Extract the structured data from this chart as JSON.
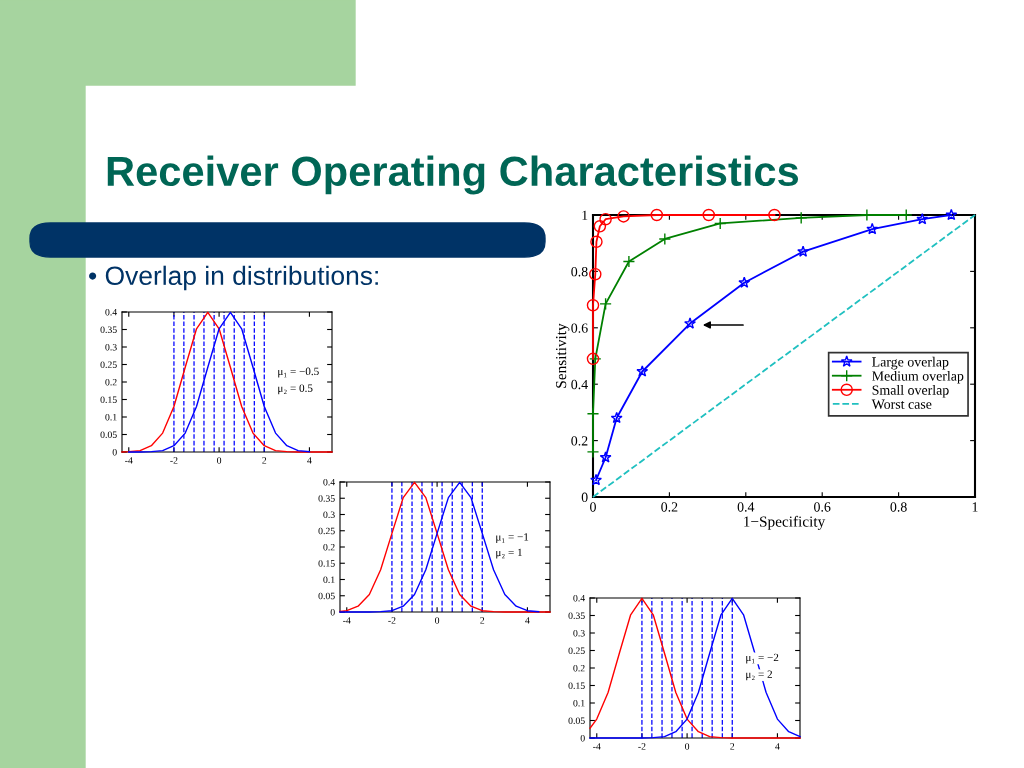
{
  "chart_data": [
    {
      "type": "other",
      "title": "Receiver Operating Characteristics",
      "annotations": [
        "• Overlap in distributions:"
      ]
    },
    {
      "type": "line",
      "x": [
        -4.3,
        -4,
        -3.5,
        -3,
        -2.5,
        -2,
        -1.5,
        -1,
        -0.5,
        0,
        0.5,
        1,
        1.5,
        2,
        2.5,
        3,
        3.5,
        4,
        4.5,
        5
      ],
      "series": [
        {
          "color": "#ff0000",
          "values": [
            0,
            0.001,
            0.004,
            0.018,
            0.054,
            0.13,
            0.242,
            0.352,
            0.399,
            0.352,
            0.242,
            0.13,
            0.054,
            0.018,
            0.004,
            0.001,
            0,
            0,
            0,
            0
          ]
        },
        {
          "color": "#0000ff",
          "values": [
            null,
            0,
            0,
            0.001,
            0.004,
            0.018,
            0.054,
            0.13,
            0.242,
            0.352,
            0.399,
            0.352,
            0.242,
            0.13,
            0.054,
            0.018,
            0.004,
            0.001,
            null,
            null
          ]
        }
      ],
      "ref_lines": [
        {
          "axis": "x",
          "value": -2,
          "color": "#0000ff",
          "line_style": "dashed"
        },
        {
          "axis": "x",
          "value": -1.56,
          "color": "#0000ff",
          "line_style": "dashed"
        },
        {
          "axis": "x",
          "value": -1.11,
          "color": "#0000ff",
          "line_style": "dashed"
        },
        {
          "axis": "x",
          "value": -0.67,
          "color": "#0000ff",
          "line_style": "dashed"
        },
        {
          "axis": "x",
          "value": -0.22,
          "color": "#0000ff",
          "line_style": "dashed"
        },
        {
          "axis": "x",
          "value": 0.22,
          "color": "#0000ff",
          "line_style": "dashed"
        },
        {
          "axis": "x",
          "value": 0.67,
          "color": "#0000ff",
          "line_style": "dashed"
        },
        {
          "axis": "x",
          "value": 1.11,
          "color": "#0000ff",
          "line_style": "dashed"
        },
        {
          "axis": "x",
          "value": 1.56,
          "color": "#0000ff",
          "line_style": "dashed"
        },
        {
          "axis": "x",
          "value": 2,
          "color": "#0000ff",
          "line_style": "dashed"
        }
      ],
      "annotations": [
        "μ₁ = −0.5",
        "μ₂ = 0.5"
      ],
      "xlim": [
        -4.3,
        5
      ],
      "ylim": [
        0,
        0.4
      ],
      "xticks": [
        -4,
        -2,
        0,
        2,
        4
      ],
      "yticks": [
        0,
        0.05,
        0.1,
        0.15,
        0.2,
        0.25,
        0.3,
        0.35,
        0.4
      ]
    },
    {
      "type": "line",
      "x": [
        -4.3,
        -4,
        -3.5,
        -3,
        -2.5,
        -2,
        -1.5,
        -1,
        -0.5,
        0,
        0.5,
        1,
        1.5,
        2,
        2.5,
        3,
        3.5,
        4,
        4.5,
        5
      ],
      "series": [
        {
          "color": "#ff0000",
          "values": [
            0.002,
            0.004,
            0.018,
            0.054,
            0.13,
            0.242,
            0.352,
            0.399,
            0.352,
            0.242,
            0.13,
            0.054,
            0.018,
            0.004,
            0.001,
            0,
            0,
            0,
            0,
            0
          ]
        },
        {
          "color": "#0000ff",
          "values": [
            0,
            0,
            0,
            0,
            0.001,
            0.004,
            0.018,
            0.054,
            0.13,
            0.242,
            0.352,
            0.399,
            0.352,
            0.242,
            0.13,
            0.054,
            0.018,
            0.004,
            0.001,
            null
          ]
        }
      ],
      "ref_lines": [
        {
          "axis": "x",
          "value": -2,
          "color": "#0000ff",
          "line_style": "dashed"
        },
        {
          "axis": "x",
          "value": -1.56,
          "color": "#0000ff",
          "line_style": "dashed"
        },
        {
          "axis": "x",
          "value": -1.11,
          "color": "#0000ff",
          "line_style": "dashed"
        },
        {
          "axis": "x",
          "value": -0.67,
          "color": "#0000ff",
          "line_style": "dashed"
        },
        {
          "axis": "x",
          "value": -0.22,
          "color": "#0000ff",
          "line_style": "dashed"
        },
        {
          "axis": "x",
          "value": 0.22,
          "color": "#0000ff",
          "line_style": "dashed"
        },
        {
          "axis": "x",
          "value": 0.67,
          "color": "#0000ff",
          "line_style": "dashed"
        },
        {
          "axis": "x",
          "value": 1.11,
          "color": "#0000ff",
          "line_style": "dashed"
        },
        {
          "axis": "x",
          "value": 1.56,
          "color": "#0000ff",
          "line_style": "dashed"
        },
        {
          "axis": "x",
          "value": 2,
          "color": "#0000ff",
          "line_style": "dashed"
        }
      ],
      "annotations": [
        "μ₁ = −1",
        "μ₂ = 1"
      ],
      "xlim": [
        -4.3,
        5
      ],
      "ylim": [
        0,
        0.4
      ],
      "xticks": [
        -4,
        -2,
        0,
        2,
        4
      ],
      "yticks": [
        0,
        0.05,
        0.1,
        0.15,
        0.2,
        0.25,
        0.3,
        0.35,
        0.4
      ]
    },
    {
      "type": "line",
      "x": [
        -4.3,
        -4,
        -3.5,
        -3,
        -2.5,
        -2,
        -1.5,
        -1,
        -0.5,
        0,
        0.5,
        1,
        1.5,
        2,
        2.5,
        3,
        3.5,
        4,
        4.5,
        5
      ],
      "series": [
        {
          "color": "#ff0000",
          "values": [
            0.028,
            0.054,
            0.13,
            0.242,
            0.352,
            0.399,
            0.352,
            0.242,
            0.13,
            0.054,
            0.018,
            0.004,
            0.001,
            0,
            0,
            0,
            0,
            0,
            0,
            0
          ]
        },
        {
          "color": "#0000ff",
          "values": [
            0,
            0,
            0,
            0,
            0,
            0,
            0.001,
            0.004,
            0.018,
            0.054,
            0.13,
            0.242,
            0.352,
            0.399,
            0.352,
            0.242,
            0.13,
            0.054,
            0.018,
            0.004
          ]
        }
      ],
      "ref_lines": [
        {
          "axis": "x",
          "value": -2,
          "color": "#0000ff",
          "line_style": "dashed"
        },
        {
          "axis": "x",
          "value": -1.56,
          "color": "#0000ff",
          "line_style": "dashed"
        },
        {
          "axis": "x",
          "value": -1.11,
          "color": "#0000ff",
          "line_style": "dashed"
        },
        {
          "axis": "x",
          "value": -0.67,
          "color": "#0000ff",
          "line_style": "dashed"
        },
        {
          "axis": "x",
          "value": -0.22,
          "color": "#0000ff",
          "line_style": "dashed"
        },
        {
          "axis": "x",
          "value": 0.22,
          "color": "#0000ff",
          "line_style": "dashed"
        },
        {
          "axis": "x",
          "value": 0.67,
          "color": "#0000ff",
          "line_style": "dashed"
        },
        {
          "axis": "x",
          "value": 1.11,
          "color": "#0000ff",
          "line_style": "dashed"
        },
        {
          "axis": "x",
          "value": 1.56,
          "color": "#0000ff",
          "line_style": "dashed"
        },
        {
          "axis": "x",
          "value": 2,
          "color": "#0000ff",
          "line_style": "dashed"
        }
      ],
      "annotations": [
        "μ₁ = −2",
        "μ₂ = 2"
      ],
      "xlim": [
        -4.3,
        5
      ],
      "ylim": [
        0,
        0.4
      ],
      "xticks": [
        -4,
        -2,
        0,
        2,
        4
      ],
      "yticks": [
        0,
        0.05,
        0.1,
        0.15,
        0.2,
        0.25,
        0.3,
        0.35,
        0.4
      ]
    },
    {
      "type": "line",
      "xlabel": "1−Specificity",
      "ylabel": "Sensitivity",
      "series": [
        {
          "name": "Large overlap",
          "color": "#0000ff",
          "marker": "star",
          "line_style": "solid",
          "x": [
            0.008,
            0.033,
            0.062,
            0.129,
            0.254,
            0.396,
            0.55,
            0.731,
            0.862,
            0.938
          ],
          "values": [
            0.06,
            0.14,
            0.28,
            0.445,
            0.615,
            0.76,
            0.87,
            0.95,
            0.985,
            1
          ]
        },
        {
          "name": "Medium overlap",
          "color": "#008000",
          "marker": "cross",
          "line_style": "solid",
          "x": [
            0,
            0,
            0.006,
            0.033,
            0.094,
            0.188,
            0.333,
            0.545,
            0.717,
            0.82
          ],
          "values": [
            0.16,
            0.295,
            0.49,
            0.685,
            0.835,
            0.915,
            0.97,
            0.99,
            1,
            1
          ]
        },
        {
          "name": "Small overlap",
          "color": "#ff0000",
          "marker": "circle",
          "line_style": "solid",
          "x": [
            0,
            0,
            0.006,
            0.009,
            0.018,
            0.033,
            0.08,
            0.167,
            0.303,
            0.475
          ],
          "values": [
            0.49,
            0.68,
            0.79,
            0.905,
            0.96,
            0.985,
            0.995,
            1,
            1,
            1
          ]
        },
        {
          "name": "Worst case",
          "color": "#20c0c0",
          "marker": "none",
          "line_style": "dashed",
          "x": [
            0,
            1
          ],
          "values": [
            0,
            1
          ]
        }
      ],
      "legend": "right",
      "xlim": [
        0,
        1
      ],
      "ylim": [
        0,
        1
      ],
      "xticks": [
        0,
        0.2,
        0.4,
        0.6,
        0.8,
        1
      ],
      "yticks": [
        0,
        0.2,
        0.4,
        0.6,
        0.8,
        1
      ]
    }
  ]
}
